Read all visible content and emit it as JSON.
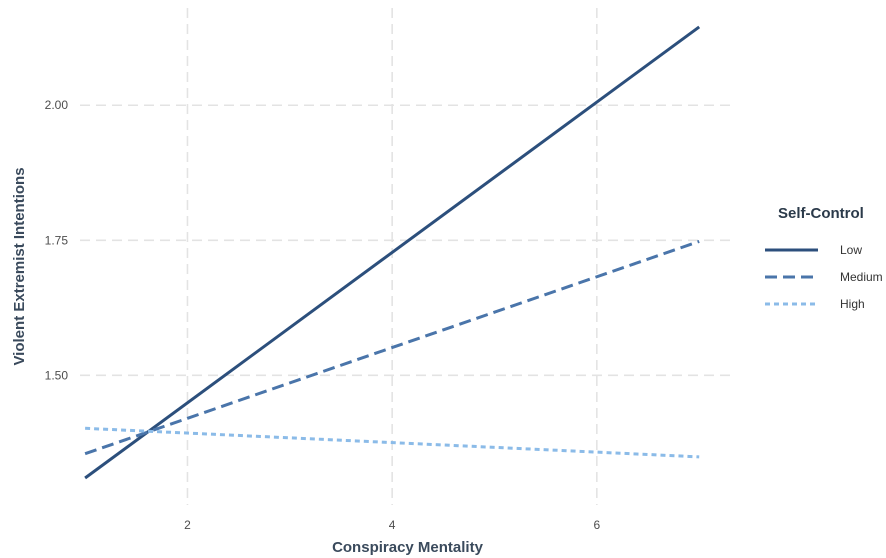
{
  "chart_data": {
    "type": "line",
    "xlabel": "Conspiracy Mentality",
    "ylabel": "Violent Extremist Intentions",
    "xlim": [
      0.95,
      7.35
    ],
    "ylim": [
      1.26,
      2.18
    ],
    "x_ticks": [
      2,
      4,
      6
    ],
    "x_tick_labels": [
      "2",
      "4",
      "6"
    ],
    "y_ticks": [
      1.5,
      1.75,
      2.0
    ],
    "y_tick_labels": [
      "1.50",
      "1.75",
      "2.00"
    ],
    "grid": true,
    "legend": {
      "title": "Self-Control",
      "placement": "right"
    },
    "series": [
      {
        "name": "Low",
        "x": [
          1,
          7
        ],
        "y": [
          1.31,
          2.145
        ],
        "color": "#2c4f7c",
        "style": "solid"
      },
      {
        "name": "Medium",
        "x": [
          1,
          7
        ],
        "y": [
          1.355,
          1.748
        ],
        "color": "#4a75aa",
        "style": "dashed"
      },
      {
        "name": "High",
        "x": [
          1,
          7
        ],
        "y": [
          1.402,
          1.349
        ],
        "color": "#8bbbe8",
        "style": "dotted"
      }
    ]
  }
}
